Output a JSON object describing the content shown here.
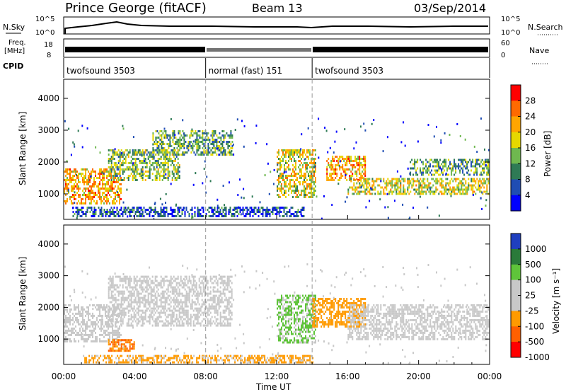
{
  "header": {
    "station": "Prince George (fitACF)",
    "beam": "Beam 13",
    "date": "03/Sep/2014"
  },
  "strips": {
    "nsky_label": "N.Sky",
    "nsky_ticks": [
      "10^5",
      "10^0"
    ],
    "nsearch_label": "N.Search",
    "nsearch_ticks": [
      "10^5",
      "10^0"
    ],
    "freq_label_line1": "Freq.",
    "freq_label_line2": "[MHz]",
    "freq_ticks": [
      "18",
      "8"
    ],
    "nave_label": "Nave",
    "nave_ticks": [
      "60",
      "0"
    ],
    "cpid_label": "CPID"
  },
  "cpid_segments": [
    {
      "label": "twofsound 3503",
      "start_hour": 0,
      "end_hour": 8
    },
    {
      "label": "normal (fast) 151",
      "start_hour": 8,
      "end_hour": 14
    },
    {
      "label": "twofsound 3503",
      "start_hour": 14,
      "end_hour": 24
    }
  ],
  "time_axis": {
    "label": "Time UT",
    "range_hours": [
      0,
      24
    ],
    "tick_labels": [
      "00:00",
      "04:00",
      "08:00",
      "12:00",
      "16:00",
      "20:00",
      "00:00"
    ]
  },
  "chart_data": [
    {
      "type": "heatmap",
      "panel": "power",
      "ylabel": "Slant Range [km]",
      "yticks": [
        1000,
        2000,
        3000,
        4000
      ],
      "ylim": [
        200,
        4600
      ],
      "xlim": [
        0,
        24
      ],
      "colorbar": {
        "label": "Power [dB]",
        "tick_labels": [
          "28",
          "24",
          "20",
          "16",
          "12",
          "8",
          "4"
        ],
        "colors": [
          "#ff0000",
          "#ff6a00",
          "#ffa500",
          "#e6d800",
          "#6fb84f",
          "#2e7a55",
          "#1f4db3",
          "#0000ff"
        ]
      },
      "echo_bands": [
        {
          "start_hour": 0.0,
          "end_hour": 3.2,
          "range_low": 700,
          "range_high": 1800,
          "power_db": 22
        },
        {
          "start_hour": 2.5,
          "end_hour": 6.5,
          "range_low": 1400,
          "range_high": 2400,
          "power_db": 14
        },
        {
          "start_hour": 5.0,
          "end_hour": 9.5,
          "range_low": 2200,
          "range_high": 3000,
          "power_db": 12
        },
        {
          "start_hour": 0.5,
          "end_hour": 13.5,
          "range_low": 300,
          "range_high": 600,
          "power_db": 6
        },
        {
          "start_hour": 12.0,
          "end_hour": 14.2,
          "range_low": 900,
          "range_high": 2400,
          "power_db": 18
        },
        {
          "start_hour": 14.8,
          "end_hour": 17.0,
          "range_low": 1400,
          "range_high": 2200,
          "power_db": 22
        },
        {
          "start_hour": 16.0,
          "end_hour": 24.0,
          "range_low": 1000,
          "range_high": 1500,
          "power_db": 18
        },
        {
          "start_hour": 19.5,
          "end_hour": 24.0,
          "range_low": 1600,
          "range_high": 2100,
          "power_db": 12
        }
      ]
    },
    {
      "type": "heatmap",
      "panel": "velocity",
      "ylabel": "Slant Range [km]",
      "yticks": [
        1000,
        2000,
        3000,
        4000
      ],
      "ylim": [
        200,
        4600
      ],
      "xlim": [
        0,
        24
      ],
      "colorbar": {
        "label": "Velocity [m s⁻¹]",
        "tick_labels": [
          "1000",
          "500",
          "100",
          "25",
          "-25",
          "-100",
          "-500",
          "-1000"
        ],
        "colors": [
          "#1f3fbf",
          "#2a7a3a",
          "#5fc43a",
          "#c8c8c8",
          "#c8c8c8",
          "#ff9a00",
          "#ff6000",
          "#ff0000"
        ]
      },
      "echo_bands": [
        {
          "start_hour": 0.0,
          "end_hour": 3.2,
          "range_low": 900,
          "range_high": 2100,
          "velocity": 0
        },
        {
          "start_hour": 2.5,
          "end_hour": 4.0,
          "range_low": 600,
          "range_high": 1000,
          "velocity": -300
        },
        {
          "start_hour": 2.5,
          "end_hour": 9.5,
          "range_low": 1400,
          "range_high": 3000,
          "velocity": 0
        },
        {
          "start_hour": 1.0,
          "end_hour": 14.0,
          "range_low": 250,
          "range_high": 500,
          "velocity": -100
        },
        {
          "start_hour": 12.0,
          "end_hour": 14.2,
          "range_low": 900,
          "range_high": 2400,
          "velocity": 80
        },
        {
          "start_hour": 14.0,
          "end_hour": 17.0,
          "range_low": 1400,
          "range_high": 2300,
          "velocity": -200
        },
        {
          "start_hour": 16.0,
          "end_hour": 24.0,
          "range_low": 1000,
          "range_high": 2100,
          "velocity": 0
        }
      ]
    }
  ]
}
